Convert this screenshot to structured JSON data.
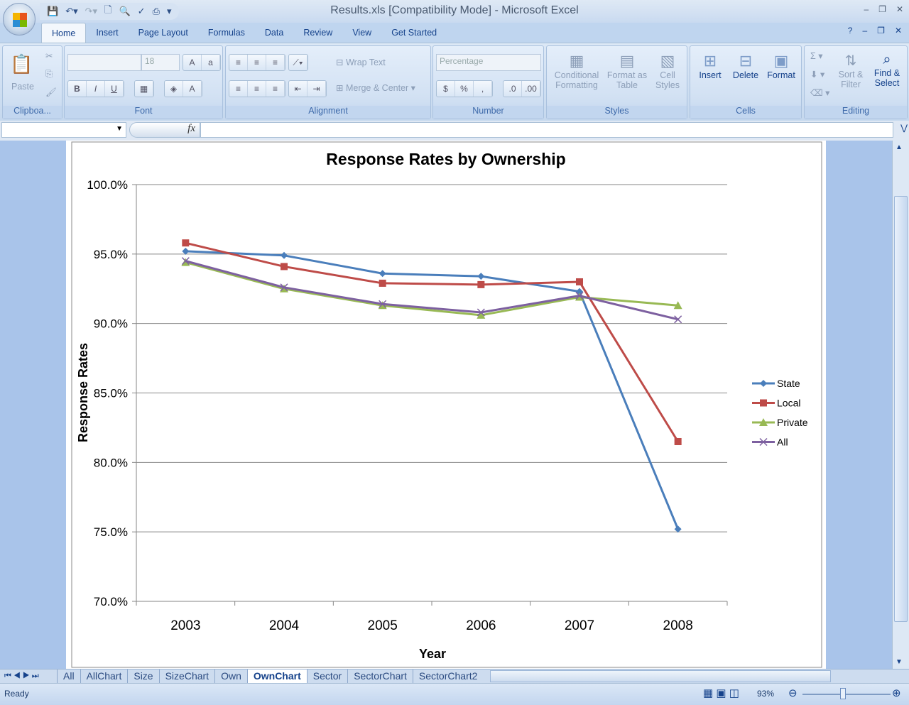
{
  "window": {
    "title": "Results.xls  [Compatibility Mode] - Microsoft Excel"
  },
  "qat": [
    "save-icon",
    "undo-icon",
    "redo-icon",
    "new-icon",
    "print-preview-icon",
    "spelling-icon",
    "quick-print-icon"
  ],
  "ribbon_tabs": [
    "Home",
    "Insert",
    "Page Layout",
    "Formulas",
    "Data",
    "Review",
    "View",
    "Get Started"
  ],
  "ribbon": {
    "clipboard": {
      "label": "Clipboa...",
      "paste": "Paste"
    },
    "font": {
      "label": "Font",
      "size": "18"
    },
    "alignment": {
      "label": "Alignment",
      "wrap": "Wrap Text",
      "merge": "Merge & Center"
    },
    "number": {
      "label": "Number",
      "format": "Percentage",
      "dollar": "$",
      "percent": "%",
      "comma": ","
    },
    "styles": {
      "label": "Styles",
      "cond": "Conditional Formatting",
      "table": "Format as Table",
      "cell": "Cell Styles"
    },
    "cells": {
      "label": "Cells",
      "insert": "Insert",
      "delete": "Delete",
      "format": "Format"
    },
    "editing": {
      "label": "Editing",
      "sort": "Sort & Filter",
      "find": "Find & Select"
    }
  },
  "formula_bar": {
    "fx": "fx",
    "name": "",
    "value": ""
  },
  "sheet_tabs": [
    "All",
    "AllChart",
    "Size",
    "SizeChart",
    "Own",
    "OwnChart",
    "Sector",
    "SectorChart",
    "SectorChart2"
  ],
  "active_sheet": "OwnChart",
  "status": {
    "text": "Ready",
    "zoom": "93%",
    "zoom_level": 0.93
  },
  "chart_data": {
    "type": "line",
    "title": "Response Rates by Ownership",
    "xlabel": "Year",
    "ylabel": "Response Rates",
    "categories": [
      "2003",
      "2004",
      "2005",
      "2006",
      "2007",
      "2008"
    ],
    "ylim": [
      70,
      100
    ],
    "yticks": [
      "70.0%",
      "75.0%",
      "80.0%",
      "85.0%",
      "90.0%",
      "95.0%",
      "100.0%"
    ],
    "grid": true,
    "legend": "right",
    "series": [
      {
        "name": "State",
        "color": "#4a7ebb",
        "marker": "diamond",
        "values": [
          95.2,
          94.9,
          93.6,
          93.4,
          92.3,
          75.2
        ]
      },
      {
        "name": "Local",
        "color": "#be4b48",
        "marker": "square",
        "values": [
          95.8,
          94.1,
          92.9,
          92.8,
          93.0,
          81.5
        ]
      },
      {
        "name": "Private",
        "color": "#98b954",
        "marker": "triangle",
        "values": [
          94.4,
          92.5,
          91.3,
          90.6,
          91.9,
          91.3
        ]
      },
      {
        "name": "All",
        "color": "#7d60a0",
        "marker": "x",
        "values": [
          94.5,
          92.6,
          91.4,
          90.8,
          92.0,
          90.3
        ]
      }
    ]
  }
}
